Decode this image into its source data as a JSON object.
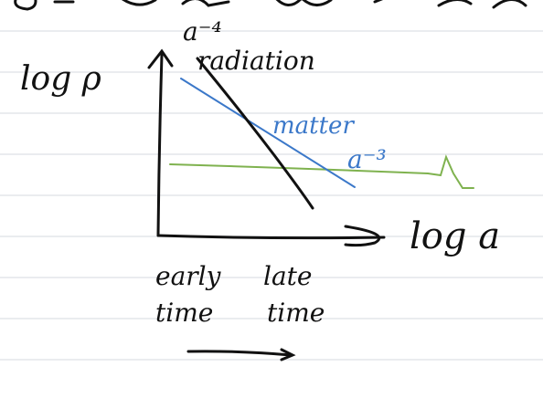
{
  "labels": {
    "y_axis": "log ρ",
    "x_axis": "log a",
    "radiation_exponent": "a⁻⁴",
    "radiation": "radiation",
    "matter": "matter",
    "matter_exponent": "a⁻³",
    "early_line1": "early",
    "early_line2": "time",
    "late_line1": "late",
    "late_line2": "time"
  },
  "colors": {
    "ruled_line": "#e4e6ea",
    "ink": "#111111",
    "matter": "#3b78c9",
    "lambda": "#7fb24f"
  }
}
